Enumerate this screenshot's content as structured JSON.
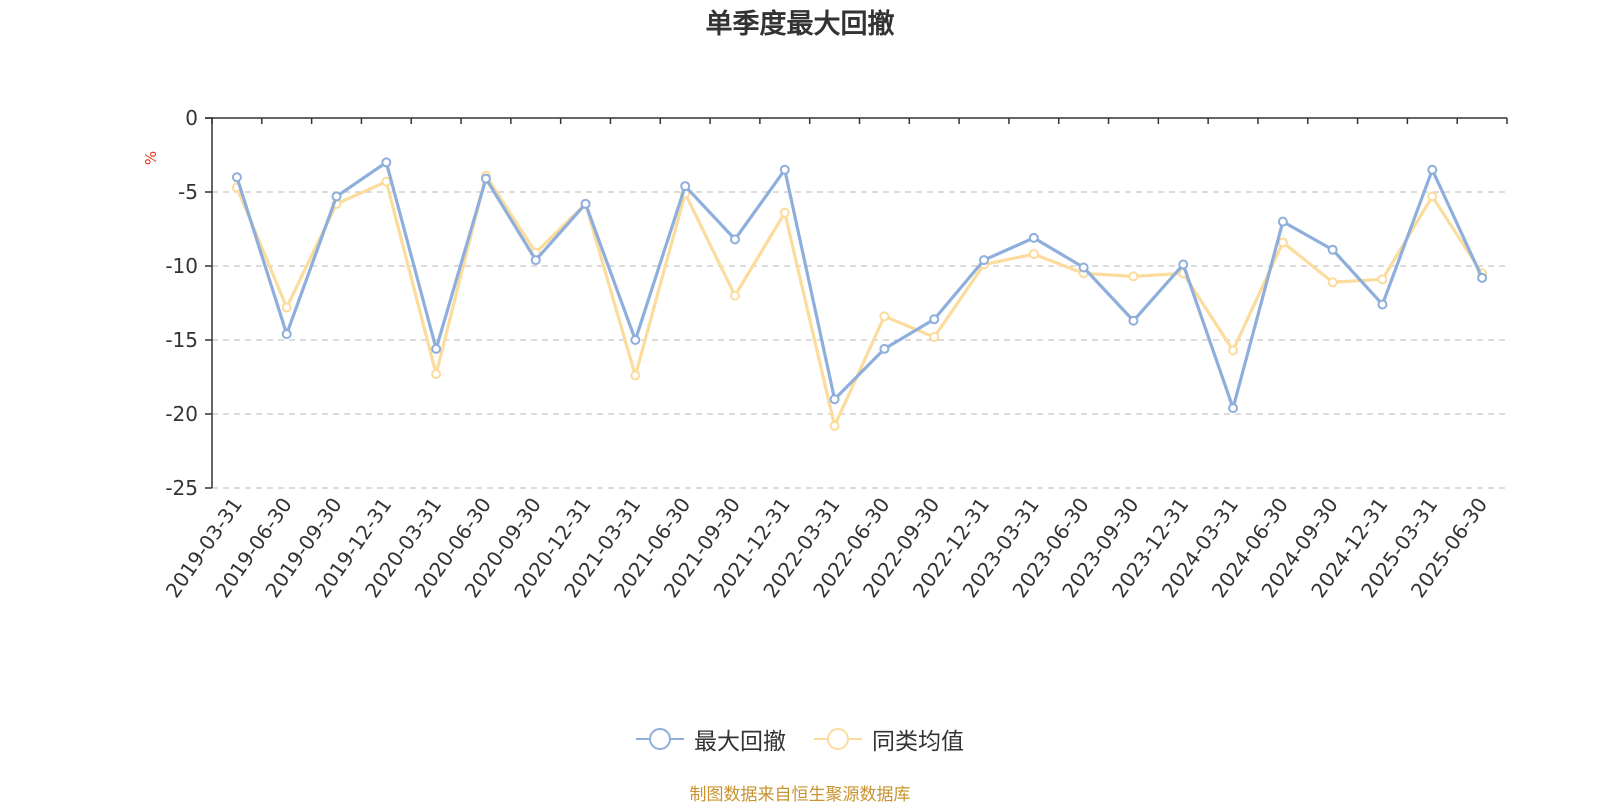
{
  "chart_data": {
    "type": "line",
    "title": "单季度最大回撤",
    "ylabel": "%",
    "xlabel": "",
    "ylim": [
      -25,
      0
    ],
    "yticks": [
      "0",
      "-5",
      "-10",
      "-15",
      "-20",
      "-25"
    ],
    "grid": true,
    "legend_position": "bottom",
    "categories": [
      "2019-03-31",
      "2019-06-30",
      "2019-09-30",
      "2019-12-31",
      "2020-03-31",
      "2020-06-30",
      "2020-09-30",
      "2020-12-31",
      "2021-03-31",
      "2021-06-30",
      "2021-09-30",
      "2021-12-31",
      "2022-03-31",
      "2022-06-30",
      "2022-09-30",
      "2022-12-31",
      "2023-03-31",
      "2023-06-30",
      "2023-09-30",
      "2023-12-31",
      "2024-03-31",
      "2024-06-30",
      "2024-09-30",
      "2024-12-31",
      "2025-03-31",
      "2025-06-30"
    ],
    "series": [
      {
        "name": "最大回撤",
        "color": "#8eaedb",
        "values": [
          -4.0,
          -14.6,
          -5.3,
          -3.0,
          -15.6,
          -4.1,
          -9.6,
          -5.8,
          -15.0,
          -4.6,
          -8.2,
          -3.5,
          -19.0,
          -15.6,
          -13.6,
          -9.6,
          -8.1,
          -10.1,
          -13.7,
          -9.9,
          -19.6,
          -7.0,
          -8.9,
          -12.6,
          -3.5,
          -10.8
        ]
      },
      {
        "name": "同类均值",
        "color": "#fcdc9c",
        "values": [
          -4.7,
          -12.8,
          -5.8,
          -4.3,
          -17.3,
          -3.9,
          -9.1,
          -5.8,
          -17.4,
          -5.1,
          -12.0,
          -6.4,
          -20.8,
          -13.4,
          -14.8,
          -9.9,
          -9.2,
          -10.5,
          -10.7,
          -10.5,
          -15.7,
          -8.4,
          -11.1,
          -10.9,
          -5.3,
          -10.5
        ]
      }
    ]
  },
  "source_text": "制图数据来自恒生聚源数据库",
  "colors": {
    "axis": "#333333",
    "grid": "#c8c8c8",
    "ylabel": "#e8341c",
    "source": "#c8932e"
  }
}
